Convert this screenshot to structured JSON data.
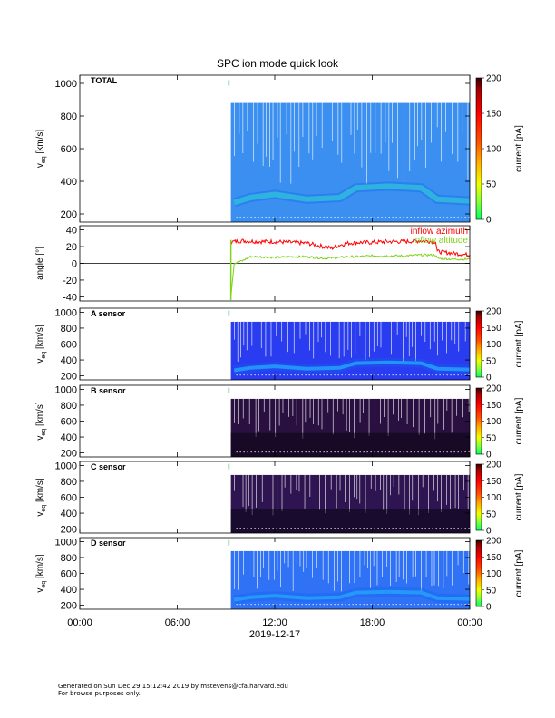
{
  "title": "SPC ion mode quick look",
  "footer": {
    "line1": "Generated on Sun Dec 29 15:12:42 2019 by mstevens@cfa.harvard.edu",
    "line2": "For browse purposes only."
  },
  "chart_data": [
    {
      "type": "heatmap",
      "panel": "TOTAL",
      "ylabel_main": "v",
      "ylabel_sub": "eq",
      "ylabel_units": "[km/s]",
      "ylim": [
        150,
        1050
      ],
      "yticks": [
        200,
        400,
        600,
        800,
        1000
      ],
      "colorbar": {
        "label": "current [pA]",
        "range": [
          0,
          200
        ],
        "ticks": [
          0,
          50,
          100,
          150,
          200
        ]
      },
      "data_extent": {
        "t_start_hours": 9.3,
        "t_end_hours": 24,
        "v_min": 150,
        "v_max": 880
      },
      "core_speed_kms": [
        {
          "t": 9.5,
          "v": 270
        },
        {
          "t": 10.5,
          "v": 300
        },
        {
          "t": 12,
          "v": 320
        },
        {
          "t": 14,
          "v": 290
        },
        {
          "t": 16,
          "v": 300
        },
        {
          "t": 17,
          "v": 360
        },
        {
          "t": 19,
          "v": 370
        },
        {
          "t": 21,
          "v": 360
        },
        {
          "t": 22,
          "v": 290
        },
        {
          "t": 24,
          "v": 280
        }
      ]
    },
    {
      "type": "line",
      "panel": "angle",
      "ylabel": "angle [°]",
      "ylim": [
        -45,
        45
      ],
      "yticks": [
        -40,
        -20,
        0,
        20,
        40
      ],
      "series": [
        {
          "name": "inflow azimuth",
          "color": "#ff0000",
          "x": [
            9.3,
            9.5,
            10,
            11,
            12,
            13,
            14,
            15,
            15.5,
            16,
            16.5,
            17,
            18,
            19,
            20,
            21,
            21.9,
            22,
            23,
            24
          ],
          "y": [
            25,
            26,
            27,
            26,
            26,
            25,
            24,
            20,
            18,
            22,
            24,
            25,
            25,
            26,
            26,
            27,
            26,
            14,
            12,
            10
          ]
        },
        {
          "name": "inflow altitude",
          "color": "#7fd31a",
          "x": [
            9.3,
            9.5,
            10,
            10.5,
            11,
            12,
            13,
            14,
            15,
            16,
            16.5,
            17,
            18,
            19,
            20,
            21,
            21.9,
            22,
            23,
            24
          ],
          "y": [
            -40,
            0,
            3,
            8,
            8,
            7,
            8,
            8,
            6,
            7,
            8,
            8,
            9,
            9,
            9,
            10,
            10,
            6,
            5,
            5
          ]
        }
      ]
    },
    {
      "type": "heatmap",
      "panel": "A sensor",
      "ylabel_main": "v",
      "ylabel_sub": "eq",
      "ylabel_units": "[km/s]",
      "ylim": [
        150,
        1050
      ],
      "yticks": [
        200,
        400,
        600,
        800,
        1000
      ],
      "colorbar": {
        "label": "current [pA]",
        "range": [
          0,
          200
        ],
        "ticks": [
          0,
          50,
          100,
          150,
          200
        ]
      },
      "data_extent": {
        "t_start_hours": 9.3,
        "t_end_hours": 24,
        "v_min": 150,
        "v_max": 880
      }
    },
    {
      "type": "heatmap",
      "panel": "B sensor",
      "ylabel_main": "v",
      "ylabel_sub": "eq",
      "ylabel_units": "[km/s]",
      "ylim": [
        150,
        1050
      ],
      "yticks": [
        200,
        400,
        600,
        800,
        1000
      ],
      "colorbar": {
        "label": "current [pA]",
        "range": [
          0,
          200
        ],
        "ticks": [
          0,
          50,
          100,
          150,
          200
        ]
      },
      "data_extent": {
        "t_start_hours": 9.3,
        "t_end_hours": 24,
        "v_min": 150,
        "v_max": 880
      }
    },
    {
      "type": "heatmap",
      "panel": "C sensor",
      "ylabel_main": "v",
      "ylabel_sub": "eq",
      "ylabel_units": "[km/s]",
      "ylim": [
        150,
        1050
      ],
      "yticks": [
        200,
        400,
        600,
        800,
        1000
      ],
      "colorbar": {
        "label": "current [pA]",
        "range": [
          0,
          200
        ],
        "ticks": [
          0,
          50,
          100,
          150,
          200
        ]
      },
      "data_extent": {
        "t_start_hours": 9.3,
        "t_end_hours": 24,
        "v_min": 150,
        "v_max": 880
      }
    },
    {
      "type": "heatmap",
      "panel": "D sensor",
      "ylabel_main": "v",
      "ylabel_sub": "eq",
      "ylabel_units": "[km/s]",
      "ylim": [
        150,
        1050
      ],
      "yticks": [
        200,
        400,
        600,
        800,
        1000
      ],
      "colorbar": {
        "label": "current [pA]",
        "range": [
          0,
          200
        ],
        "ticks": [
          0,
          50,
          100,
          150,
          200
        ]
      },
      "data_extent": {
        "t_start_hours": 9.3,
        "t_end_hours": 24,
        "v_min": 150,
        "v_max": 880
      }
    }
  ],
  "x_axis": {
    "ticks": [
      "00:00",
      "06:00",
      "12:00",
      "18:00",
      "00:00"
    ],
    "tick_hours": [
      0,
      6,
      12,
      18,
      24
    ],
    "date_label": "2019-12-17"
  },
  "palettes": {
    "TOTAL": "#3a8ff0",
    "A sensor": "#2a3cf0",
    "B sensor": "#2a1040",
    "C sensor": "#2e1450",
    "D sensor": "#2f72f5"
  }
}
